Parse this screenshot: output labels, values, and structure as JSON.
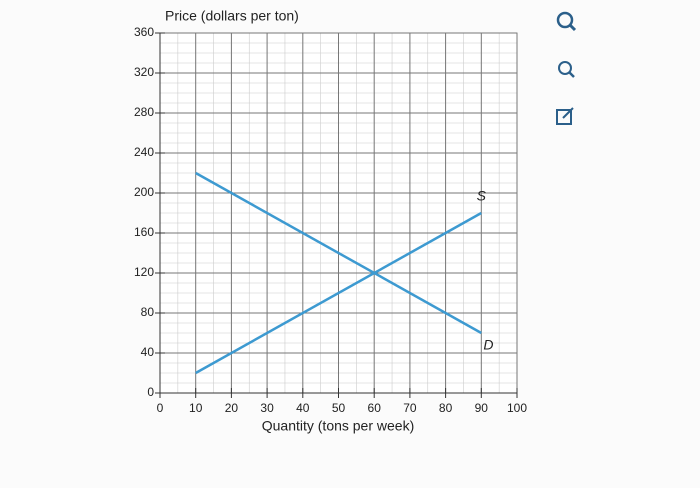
{
  "chart_data": {
    "type": "line",
    "y_label": "Price (dollars per ton)",
    "x_label": "Quantity (tons per week)",
    "x": [
      10,
      90
    ],
    "series": [
      {
        "name": "S",
        "color": "#3d9ad1",
        "values": [
          20,
          180
        ]
      },
      {
        "name": "D",
        "color": "#3d9ad1",
        "values": [
          220,
          60
        ]
      }
    ],
    "annotations": [
      {
        "text": "S",
        "x": 90,
        "y": 196
      },
      {
        "text": "D",
        "x": 92,
        "y": 47
      }
    ],
    "xlim": [
      0,
      100
    ],
    "xticks": [
      0,
      10,
      20,
      30,
      40,
      50,
      60,
      70,
      80,
      90,
      100
    ],
    "ylim": [
      0,
      360
    ],
    "yticks": [
      0,
      40,
      80,
      120,
      160,
      200,
      240,
      280,
      320,
      360
    ],
    "grid": true
  }
}
